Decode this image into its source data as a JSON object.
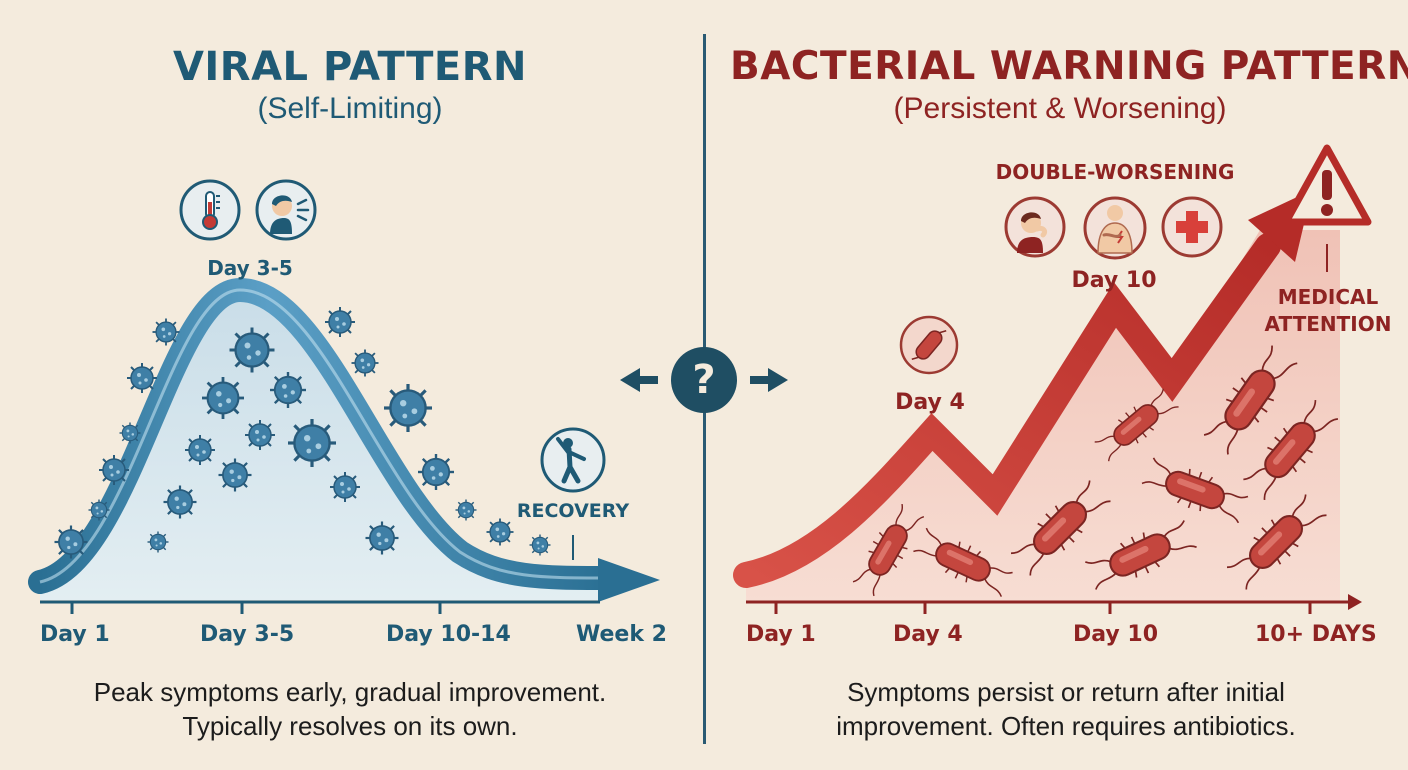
{
  "viral": {
    "title": "VIRAL PATTERN",
    "subtitle": "(Self-Limiting)",
    "peak_label": "Day 3-5",
    "recovery_label": "RECOVERY",
    "axis_labels": [
      "Day 1",
      "Day 3-5",
      "Day 10-14",
      "Week 2"
    ],
    "caption_line1": "Peak symptoms early, gradual improvement.",
    "caption_line2": "Typically resolves on its own.",
    "icons": [
      "thermometer-icon",
      "coughing-person-icon",
      "stretching-person-icon",
      "virus-icon"
    ],
    "colors": {
      "accent": "#1f5a75",
      "curve": "#4a8bb0",
      "fill": "#d5e6ee"
    }
  },
  "bacterial": {
    "title": "BACTERIAL WARNING PATTERN",
    "subtitle": "(Persistent & Worsening)",
    "double_worsening_label": "DOUBLE-WORSENING",
    "day4_label": "Day 4",
    "day10_label": "Day 10",
    "medical_line1": "MEDICAL",
    "medical_line2": "ATTENTION",
    "axis_labels": [
      "Day 1",
      "Day 4",
      "Day 10",
      "10+ DAYS"
    ],
    "caption_line1": "Symptoms persist or return after initial",
    "caption_line2": "improvement. Often requires antibiotics.",
    "icons": [
      "coughing-person-icon",
      "chest-pain-icon",
      "medical-cross-icon",
      "bacteria-icon",
      "warning-icon"
    ],
    "colors": {
      "accent": "#8e2322",
      "arrow": "#c43a35",
      "fill": "#f3d2c8"
    }
  },
  "center": {
    "icon": "question-mark-icon"
  }
}
